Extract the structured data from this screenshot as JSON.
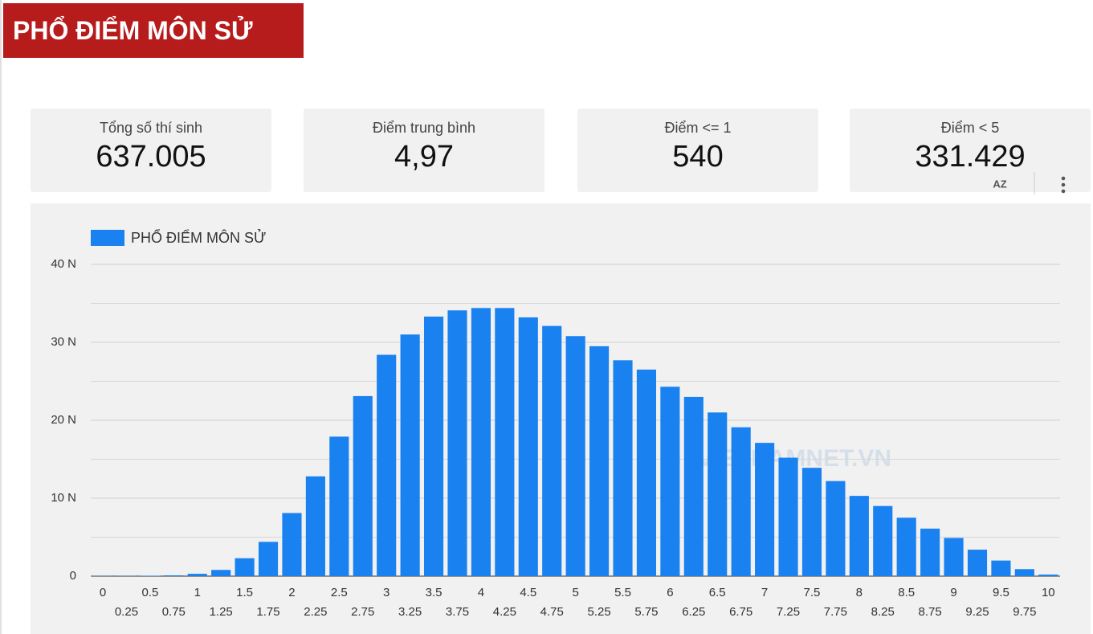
{
  "header": {
    "title": "PHỔ ĐIỂM MÔN SỬ"
  },
  "stats": [
    {
      "label": "Tổng số thí sinh",
      "value": "637.005"
    },
    {
      "label": "Điểm trung bình",
      "value": "4,97"
    },
    {
      "label": "Điểm <= 1",
      "value": "540"
    },
    {
      "label": "Điểm < 5",
      "value": "331.429"
    }
  ],
  "toolbar": {
    "sort_label": "AZ"
  },
  "watermark": "VIETNAMNET.VN",
  "chart_data": {
    "type": "bar",
    "categories": [
      "0",
      "0.25",
      "0.5",
      "0.75",
      "1",
      "1.25",
      "1.5",
      "1.75",
      "2",
      "2.25",
      "2.5",
      "2.75",
      "3",
      "3.25",
      "3.5",
      "3.75",
      "4",
      "4.25",
      "4.5",
      "4.75",
      "5",
      "5.25",
      "5.5",
      "5.75",
      "6",
      "6.25",
      "6.5",
      "6.75",
      "7",
      "7.25",
      "7.5",
      "7.75",
      "8",
      "8.25",
      "8.5",
      "8.75",
      "9",
      "9.25",
      "9.5",
      "9.75",
      "10"
    ],
    "series": [
      {
        "name": "PHỔ ĐIỂM MÔN SỬ",
        "color": "#1a82f0",
        "values": [
          0.02,
          0.03,
          0.05,
          0.1,
          0.3,
          0.8,
          2.3,
          4.4,
          8.1,
          12.8,
          17.9,
          23.1,
          28.4,
          31.0,
          33.3,
          34.1,
          34.4,
          34.4,
          33.2,
          32.1,
          30.8,
          29.5,
          27.7,
          26.5,
          24.3,
          23.0,
          21.0,
          19.1,
          17.1,
          15.2,
          13.9,
          12.2,
          10.3,
          9.0,
          7.5,
          6.1,
          4.9,
          3.4,
          2.0,
          0.9,
          0.2
        ]
      }
    ],
    "ylim": [
      0,
      40
    ],
    "yticks": [
      0,
      {
        "value": 10,
        "label": "10 N"
      },
      {
        "value": 20,
        "label": "20 N"
      },
      {
        "value": 30,
        "label": "30 N"
      },
      {
        "value": 40,
        "label": "40 N"
      }
    ],
    "minor_yticks": [
      5,
      15,
      25,
      35
    ],
    "grid": true,
    "legend": "top-left"
  }
}
